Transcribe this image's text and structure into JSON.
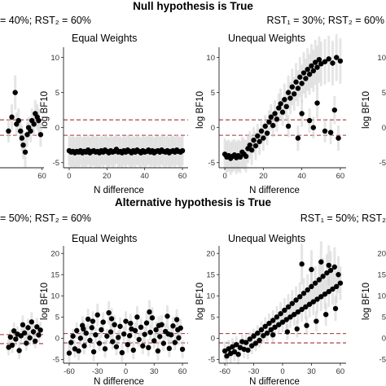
{
  "sections": {
    "top_title": "Null hypothesis is True",
    "bottom_title": "Alternative hypothesis is True"
  },
  "conditions": {
    "top_left": "= 40%; RST₂ = 60%",
    "top_right": "RST₁ = 30%; RST₂ = 60%",
    "bottom_left": "= 50%; RST₂ = 60%",
    "bottom_right": "RST₁ = 50%; RST₂"
  },
  "chart_data": [
    {
      "id": "null-left-partial",
      "type": "scatter",
      "title": "",
      "xlabel": "",
      "ylabel": "",
      "xticks": [
        60
      ],
      "yticks": [],
      "xlim": [
        -10,
        63
      ],
      "ylim": [
        -5.5,
        11
      ],
      "ref_lines": [
        1.1,
        -1.1
      ],
      "points": [
        [
          10,
          -0.5
        ],
        [
          15,
          1.5
        ],
        [
          20,
          5.0
        ],
        [
          22,
          0.5
        ],
        [
          25,
          1.0
        ],
        [
          28,
          -0.5
        ],
        [
          30,
          -1.5
        ],
        [
          32,
          -2.5
        ],
        [
          35,
          -3.5
        ],
        [
          38,
          -1.0
        ],
        [
          40,
          0.0
        ],
        [
          43,
          -0.5
        ],
        [
          45,
          1.0
        ],
        [
          48,
          0.5
        ],
        [
          50,
          2.0
        ],
        [
          53,
          1.5
        ],
        [
          55,
          1.0
        ],
        [
          58,
          -1.0
        ]
      ]
    },
    {
      "id": "null-equal",
      "type": "scatter",
      "title": "Equal Weights",
      "xlabel": "N difference",
      "ylabel": "log BF10",
      "xticks": [
        0,
        20,
        40,
        60
      ],
      "yticks": [
        -5,
        0,
        5,
        10
      ],
      "xlim": [
        -3,
        63
      ],
      "ylim": [
        -5.5,
        11
      ],
      "ref_lines": [
        1.1,
        -1.1
      ],
      "points": [
        [
          0,
          -3.3
        ],
        [
          1,
          -3.5
        ],
        [
          2,
          -3.4
        ],
        [
          3,
          -3.6
        ],
        [
          4,
          -3.4
        ],
        [
          5,
          -3.5
        ],
        [
          6,
          -3.3
        ],
        [
          7,
          -3.6
        ],
        [
          8,
          -3.4
        ],
        [
          9,
          -3.5
        ],
        [
          10,
          -3.2
        ],
        [
          11,
          -3.6
        ],
        [
          12,
          -3.4
        ],
        [
          13,
          -3.3
        ],
        [
          14,
          -3.5
        ],
        [
          15,
          -3.4
        ],
        [
          16,
          -3.6
        ],
        [
          17,
          -3.3
        ],
        [
          18,
          -3.5
        ],
        [
          19,
          -3.2
        ],
        [
          20,
          -3.4
        ],
        [
          21,
          -3.6
        ],
        [
          22,
          -3.3
        ],
        [
          23,
          -3.5
        ],
        [
          24,
          -3.4
        ],
        [
          25,
          -3.1
        ],
        [
          26,
          -3.5
        ],
        [
          27,
          -3.4
        ],
        [
          28,
          -3.6
        ],
        [
          29,
          -3.3
        ],
        [
          30,
          -3.5
        ],
        [
          31,
          -3.2
        ],
        [
          32,
          -3.4
        ],
        [
          33,
          -3.6
        ],
        [
          34,
          -3.3
        ],
        [
          35,
          -3.5
        ],
        [
          36,
          -3.2
        ],
        [
          37,
          -3.4
        ],
        [
          38,
          -3.6
        ],
        [
          39,
          -3.3
        ],
        [
          40,
          -3.5
        ],
        [
          41,
          -3.4
        ],
        [
          42,
          -3.2
        ],
        [
          43,
          -3.5
        ],
        [
          44,
          -3.3
        ],
        [
          45,
          -3.6
        ],
        [
          46,
          -3.4
        ],
        [
          47,
          -3.3
        ],
        [
          48,
          -3.5
        ],
        [
          49,
          -3.2
        ],
        [
          50,
          -3.4
        ],
        [
          51,
          -3.5
        ],
        [
          52,
          -3.3
        ],
        [
          53,
          -3.6
        ],
        [
          54,
          -3.4
        ],
        [
          55,
          -3.3
        ],
        [
          56,
          -3.5
        ],
        [
          57,
          -3.2
        ],
        [
          58,
          -3.4
        ],
        [
          59,
          -3.5
        ],
        [
          60,
          -3.3
        ]
      ]
    },
    {
      "id": "null-unequal",
      "type": "scatter",
      "title": "Unequal Weights",
      "xlabel": "N difference",
      "ylabel": "log BF10",
      "xticks": [
        0,
        20,
        40,
        60
      ],
      "yticks": [
        -5,
        0,
        5,
        10
      ],
      "xlim": [
        -3,
        63
      ],
      "ylim": [
        -5.5,
        11
      ],
      "ref_lines": [
        1.1,
        -1.1
      ],
      "points": [
        [
          0,
          -3.8
        ],
        [
          1,
          -4.2
        ],
        [
          2,
          -4.0
        ],
        [
          3,
          -4.4
        ],
        [
          4,
          -4.1
        ],
        [
          5,
          -3.9
        ],
        [
          6,
          -4.3
        ],
        [
          7,
          -4.0
        ],
        [
          8,
          -4.2
        ],
        [
          9,
          -3.5
        ],
        [
          10,
          -3.8
        ],
        [
          11,
          -4.1
        ],
        [
          12,
          -3.0
        ],
        [
          13,
          -2.5
        ],
        [
          14,
          -3.2
        ],
        [
          15,
          -1.8
        ],
        [
          16,
          -2.6
        ],
        [
          17,
          -1.2
        ],
        [
          18,
          -2.0
        ],
        [
          19,
          -0.5
        ],
        [
          20,
          -1.5
        ],
        [
          21,
          0.2
        ],
        [
          22,
          -0.8
        ],
        [
          23,
          0.8
        ],
        [
          24,
          1.5
        ],
        [
          25,
          0.3
        ],
        [
          26,
          2.0
        ],
        [
          27,
          1.2
        ],
        [
          28,
          2.8
        ],
        [
          29,
          3.4
        ],
        [
          30,
          2.2
        ],
        [
          31,
          4.0
        ],
        [
          32,
          3.0
        ],
        [
          33,
          5.0
        ],
        [
          34,
          4.2
        ],
        [
          35,
          5.8
        ],
        [
          36,
          4.8
        ],
        [
          37,
          6.5
        ],
        [
          38,
          5.6
        ],
        [
          39,
          7.2
        ],
        [
          40,
          6.3
        ],
        [
          41,
          7.8
        ],
        [
          42,
          7.0
        ],
        [
          43,
          8.3
        ],
        [
          44,
          7.6
        ],
        [
          45,
          8.8
        ],
        [
          46,
          8.1
        ],
        [
          47,
          9.3
        ],
        [
          48,
          8.6
        ],
        [
          49,
          9.7
        ],
        [
          50,
          9.1
        ],
        [
          52,
          9.4
        ],
        [
          54,
          9.8
        ],
        [
          56,
          9.2
        ],
        [
          58,
          10.0
        ],
        [
          60,
          9.5
        ],
        [
          33,
          0.2
        ],
        [
          38,
          -1.5
        ],
        [
          40,
          2.0
        ],
        [
          44,
          1.0
        ],
        [
          48,
          3.5
        ],
        [
          52,
          -0.5
        ],
        [
          55,
          -0.7
        ],
        [
          57,
          2.5
        ],
        [
          59,
          -1.5
        ],
        [
          46,
          0.0
        ]
      ]
    },
    {
      "id": "null-right-partial",
      "type": "scatter",
      "title": "",
      "xlabel": "",
      "ylabel": "log BF10",
      "xticks": [],
      "yticks": [
        -5,
        0,
        5,
        10
      ],
      "xlim": [
        -3,
        63
      ],
      "ylim": [
        -5.5,
        11
      ],
      "ref_lines": [
        1.1,
        -1.1
      ],
      "points": []
    },
    {
      "id": "alt-left-partial",
      "type": "scatter",
      "title": "",
      "xlabel": "",
      "ylabel": "",
      "xticks": [],
      "yticks": [],
      "xlim": [
        -20,
        63
      ],
      "ylim": [
        -5.5,
        22
      ],
      "ref_lines": [
        1.1,
        -1.1
      ],
      "points": [
        [
          3,
          -2.0
        ],
        [
          6,
          0.5
        ],
        [
          9,
          -1.5
        ],
        [
          12,
          2.0
        ],
        [
          15,
          0.0
        ],
        [
          18,
          1.2
        ],
        [
          21,
          -2.8
        ],
        [
          24,
          0.8
        ],
        [
          27,
          3.5
        ],
        [
          30,
          1.5
        ],
        [
          33,
          -1.0
        ],
        [
          36,
          2.8
        ],
        [
          39,
          0.3
        ],
        [
          42,
          4.2
        ],
        [
          45,
          1.8
        ],
        [
          48,
          -0.5
        ],
        [
          51,
          3.0
        ],
        [
          54,
          1.0
        ],
        [
          57,
          2.2
        ]
      ]
    },
    {
      "id": "alt-equal",
      "type": "scatter",
      "title": "Equal Weights",
      "xlabel": "N difference",
      "ylabel": "log BF10",
      "xticks": [
        -60,
        -30,
        0,
        30,
        60
      ],
      "yticks": [
        -5,
        0,
        5,
        10,
        15,
        20
      ],
      "xlim": [
        -66,
        66
      ],
      "ylim": [
        -5.5,
        21
      ],
      "ref_lines": [
        1.1,
        -1.1
      ],
      "points": [
        [
          -60,
          -3.5
        ],
        [
          -58,
          -1.0
        ],
        [
          -56,
          0.5
        ],
        [
          -54,
          -2.5
        ],
        [
          -52,
          1.8
        ],
        [
          -50,
          -3.0
        ],
        [
          -48,
          0.0
        ],
        [
          -46,
          3.0
        ],
        [
          -44,
          -1.8
        ],
        [
          -42,
          1.2
        ],
        [
          -40,
          4.5
        ],
        [
          -38,
          -0.5
        ],
        [
          -36,
          2.5
        ],
        [
          -34,
          -3.2
        ],
        [
          -32,
          0.8
        ],
        [
          -30,
          5.5
        ],
        [
          -28,
          -1.2
        ],
        [
          -26,
          2.0
        ],
        [
          -24,
          3.8
        ],
        [
          -22,
          -2.5
        ],
        [
          -20,
          0.5
        ],
        [
          -18,
          6.0
        ],
        [
          -16,
          1.5
        ],
        [
          -14,
          -0.8
        ],
        [
          -12,
          3.2
        ],
        [
          -10,
          -2.0
        ],
        [
          -8,
          0.2
        ],
        [
          -6,
          2.8
        ],
        [
          -4,
          -3.4
        ],
        [
          -2,
          1.0
        ],
        [
          0,
          4.0
        ],
        [
          2,
          -1.5
        ],
        [
          4,
          0.6
        ],
        [
          6,
          2.2
        ],
        [
          8,
          -2.8
        ],
        [
          10,
          1.8
        ],
        [
          12,
          5.0
        ],
        [
          14,
          -0.3
        ],
        [
          16,
          2.6
        ],
        [
          18,
          -1.8
        ],
        [
          20,
          0.9
        ],
        [
          22,
          3.6
        ],
        [
          24,
          -2.2
        ],
        [
          26,
          1.4
        ],
        [
          28,
          4.8
        ],
        [
          30,
          -0.6
        ],
        [
          32,
          2.0
        ],
        [
          34,
          -3.0
        ],
        [
          36,
          0.4
        ],
        [
          38,
          3.2
        ],
        [
          40,
          -1.2
        ],
        [
          42,
          1.6
        ],
        [
          44,
          5.2
        ],
        [
          46,
          -2.4
        ],
        [
          48,
          0.8
        ],
        [
          50,
          2.9
        ],
        [
          52,
          -1.0
        ],
        [
          54,
          4.4
        ],
        [
          56,
          0.1
        ],
        [
          58,
          2.4
        ],
        [
          60,
          -2.6
        ],
        [
          -45,
          2.2
        ],
        [
          -35,
          4.0
        ],
        [
          -15,
          4.6
        ],
        [
          5,
          3.5
        ],
        [
          25,
          6.2
        ],
        [
          35,
          3.0
        ],
        [
          45,
          1.0
        ],
        [
          55,
          2.0
        ]
      ]
    },
    {
      "id": "alt-unequal",
      "type": "scatter",
      "title": "Unequal Weights",
      "xlabel": "N difference",
      "ylabel": "log BF10",
      "xticks": [
        -60,
        -30,
        0,
        30,
        60
      ],
      "yticks": [
        -5,
        0,
        5,
        10,
        15,
        20
      ],
      "xlim": [
        -66,
        66
      ],
      "ylim": [
        -5.5,
        21
      ],
      "ref_lines": [
        1.1,
        -1.1
      ],
      "points": [
        [
          -60,
          -3.0
        ],
        [
          -58,
          -4.2
        ],
        [
          -56,
          -2.5
        ],
        [
          -54,
          -3.6
        ],
        [
          -52,
          -2.0
        ],
        [
          -50,
          -3.2
        ],
        [
          -48,
          -1.5
        ],
        [
          -46,
          -3.8
        ],
        [
          -44,
          -2.2
        ],
        [
          -42,
          -0.8
        ],
        [
          -40,
          -2.6
        ],
        [
          -38,
          -1.0
        ],
        [
          -36,
          -2.8
        ],
        [
          -34,
          -0.2
        ],
        [
          -32,
          -1.8
        ],
        [
          -30,
          0.5
        ],
        [
          -28,
          -1.2
        ],
        [
          -26,
          1.2
        ],
        [
          -24,
          -0.5
        ],
        [
          -22,
          2.0
        ],
        [
          -20,
          0.6
        ],
        [
          -18,
          2.8
        ],
        [
          -16,
          1.2
        ],
        [
          -14,
          3.5
        ],
        [
          -12,
          2.0
        ],
        [
          -10,
          4.2
        ],
        [
          -8,
          2.6
        ],
        [
          -6,
          5.0
        ],
        [
          -4,
          3.2
        ],
        [
          -2,
          5.8
        ],
        [
          0,
          3.8
        ],
        [
          2,
          6.6
        ],
        [
          4,
          4.4
        ],
        [
          6,
          7.4
        ],
        [
          8,
          5.0
        ],
        [
          10,
          8.2
        ],
        [
          12,
          5.6
        ],
        [
          14,
          9.0
        ],
        [
          16,
          6.2
        ],
        [
          18,
          9.8
        ],
        [
          20,
          6.8
        ],
        [
          22,
          10.6
        ],
        [
          24,
          7.4
        ],
        [
          26,
          11.4
        ],
        [
          28,
          8.0
        ],
        [
          30,
          12.2
        ],
        [
          32,
          8.6
        ],
        [
          34,
          13.0
        ],
        [
          36,
          9.2
        ],
        [
          38,
          13.8
        ],
        [
          40,
          9.8
        ],
        [
          42,
          14.6
        ],
        [
          44,
          10.4
        ],
        [
          46,
          15.4
        ],
        [
          48,
          11.0
        ],
        [
          50,
          16.0
        ],
        [
          52,
          11.6
        ],
        [
          54,
          16.8
        ],
        [
          56,
          12.2
        ],
        [
          58,
          15.0
        ],
        [
          60,
          13.0
        ],
        [
          -10,
          0.8
        ],
        [
          5,
          1.5
        ],
        [
          15,
          2.2
        ],
        [
          25,
          3.0
        ],
        [
          35,
          4.0
        ],
        [
          45,
          5.6
        ],
        [
          55,
          7.0
        ],
        [
          20,
          17.5
        ],
        [
          30,
          16.2
        ],
        [
          40,
          18.0
        ],
        [
          48,
          17.2
        ]
      ]
    },
    {
      "id": "alt-right-partial",
      "type": "scatter",
      "title": "",
      "xlabel": "",
      "ylabel": "log BF10",
      "xticks": [],
      "yticks": [
        -5,
        0,
        5,
        10,
        15,
        20
      ],
      "xlim": [
        -66,
        66
      ],
      "ylim": [
        -5.5,
        21
      ],
      "ref_lines": [
        1.1,
        -1.1
      ],
      "points": []
    }
  ]
}
